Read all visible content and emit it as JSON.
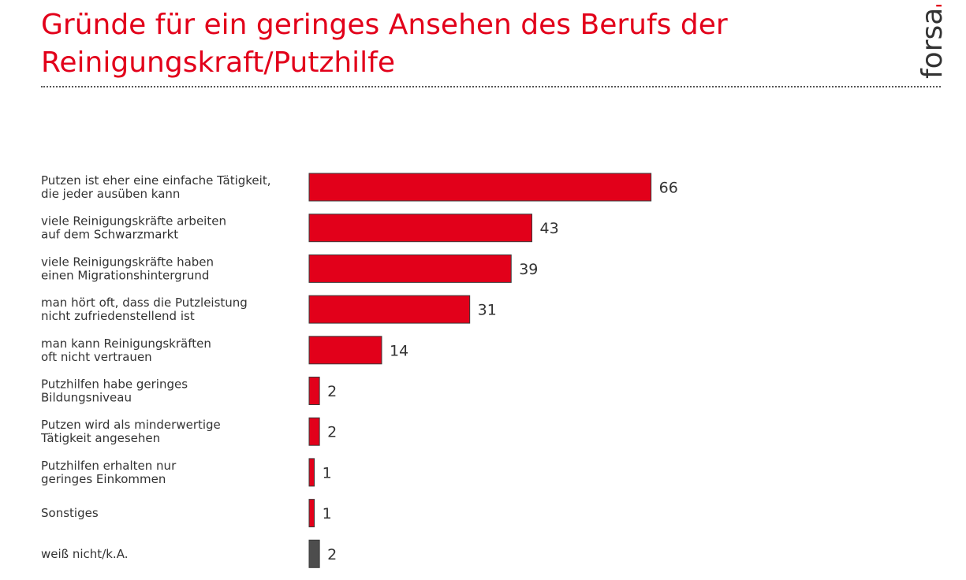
{
  "title": {
    "line1": "Gründe für ein geringes Ansehen des Berufs der",
    "line2": "Reinigungskraft/Putzhilfe"
  },
  "brand": {
    "name": "forsa",
    "dot": "."
  },
  "colors": {
    "accent": "#e2001a",
    "bar_main": "#e2001a",
    "bar_neutral": "#4d4d4d",
    "text": "#333333"
  },
  "chart_data": {
    "type": "bar",
    "orientation": "horizontal",
    "title": "Gründe für ein geringes Ansehen des Berufs der Reinigungskraft/Putzhilfe",
    "xlabel": "",
    "ylabel": "",
    "xlim": [
      0,
      100
    ],
    "grid": false,
    "legend": "none",
    "categories": [
      [
        "Putzen ist eher eine einfache Tätigkeit,",
        "die jeder ausüben kann"
      ],
      [
        "viele Reinigungskräfte arbeiten",
        "auf dem Schwarzmarkt"
      ],
      [
        "viele Reinigungskräfte haben",
        "einen Migrationshintergrund"
      ],
      [
        "man hört oft, dass die Putzleistung",
        "nicht zufriedenstellend ist"
      ],
      [
        "man kann Reinigungskräften",
        "oft nicht vertrauen"
      ],
      [
        "Putzhilfen habe geringes",
        "Bildungsniveau"
      ],
      [
        "Putzen wird als minderwertige",
        "Tätigkeit angesehen"
      ],
      [
        "Putzhilfen erhalten nur",
        "geringes Einkommen"
      ],
      [
        "Sonstiges"
      ],
      [
        "weiß nicht/k.A."
      ]
    ],
    "values": [
      66,
      43,
      39,
      31,
      14,
      2,
      2,
      1,
      1,
      2
    ],
    "bar_colors": [
      "#e2001a",
      "#e2001a",
      "#e2001a",
      "#e2001a",
      "#e2001a",
      "#e2001a",
      "#e2001a",
      "#e2001a",
      "#e2001a",
      "#4d4d4d"
    ]
  }
}
